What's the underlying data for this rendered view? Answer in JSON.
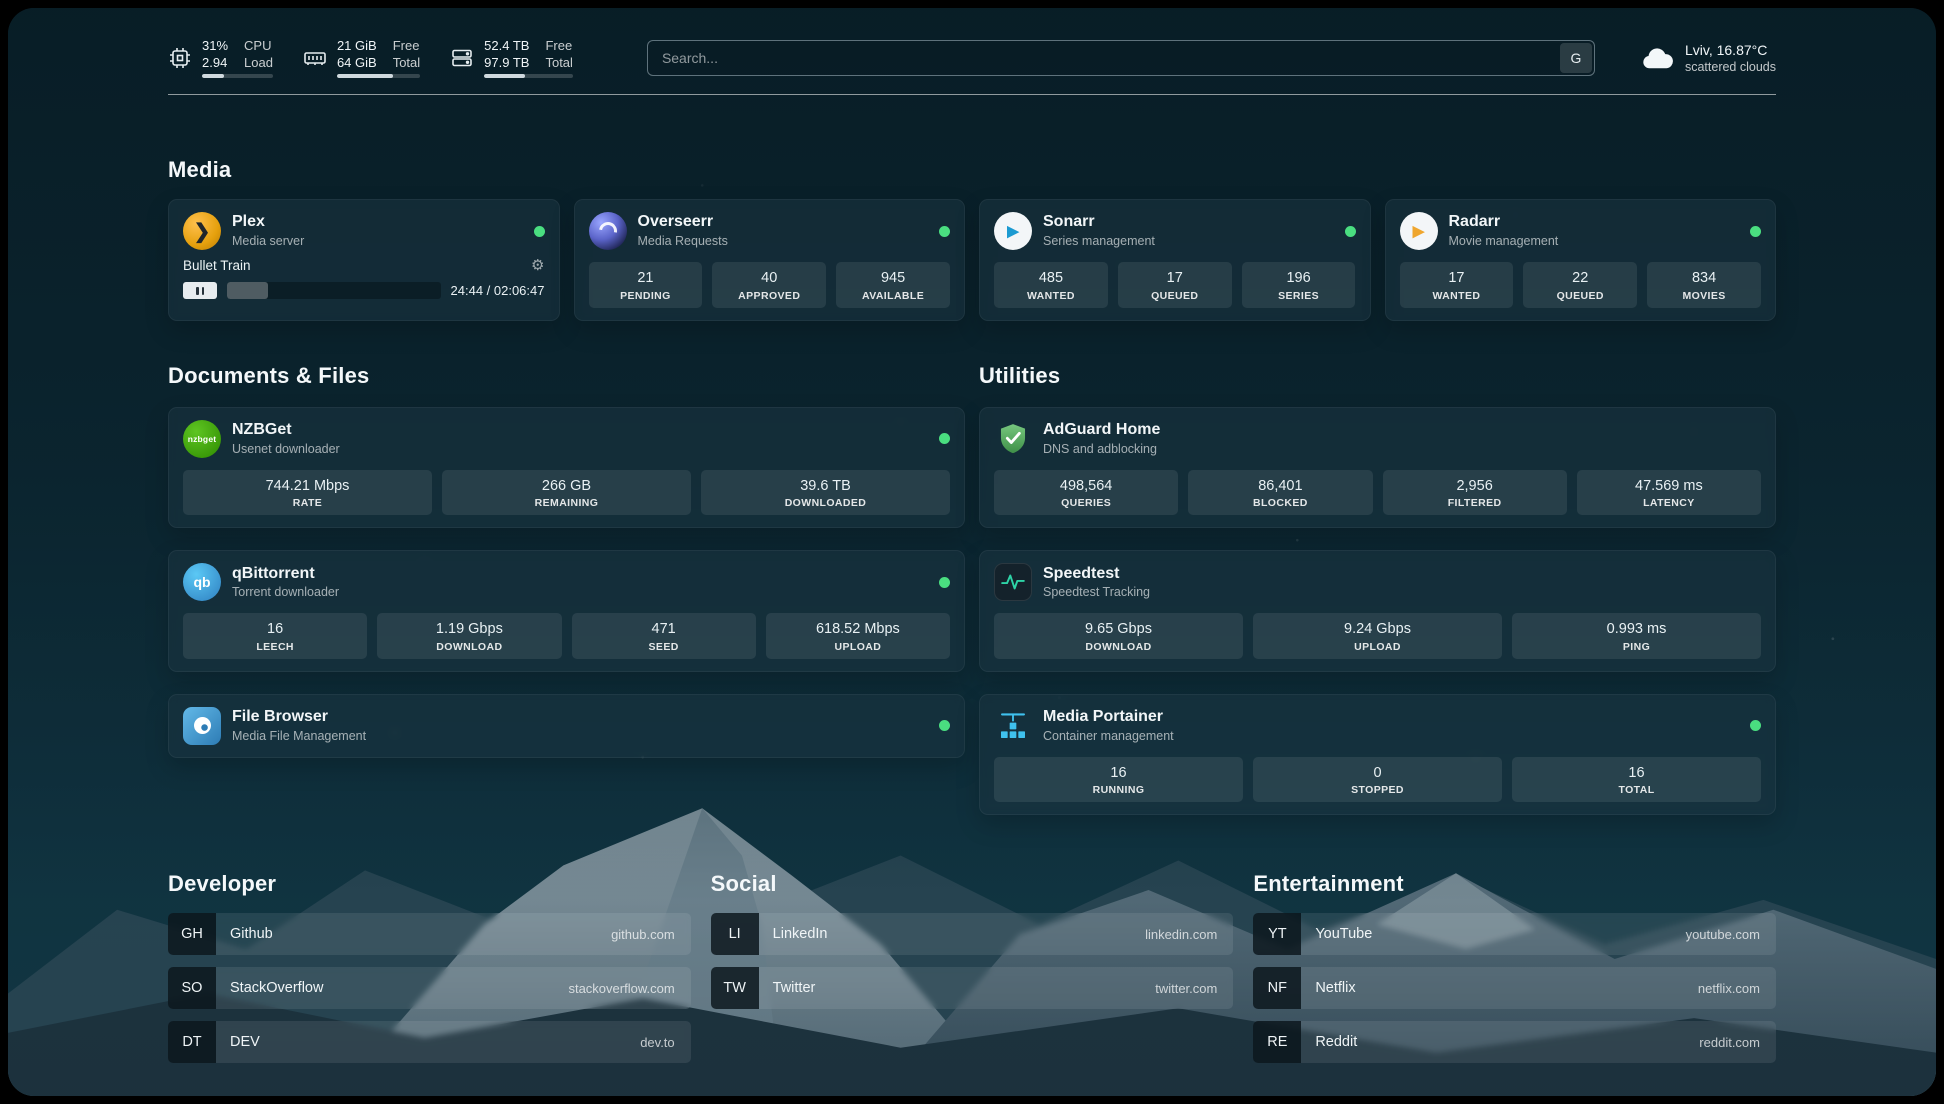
{
  "topbar": {
    "cpu": {
      "percent": 31,
      "value": "31%",
      "value2": "2.94",
      "label1": "CPU",
      "label2": "Load"
    },
    "ram": {
      "percent": 67,
      "value": "21 GiB",
      "value2": "64 GiB",
      "label1": "Free",
      "label2": "Total"
    },
    "disk": {
      "percent": 46,
      "value": "52.4 TB",
      "value2": "97.9 TB",
      "label1": "Free",
      "label2": "Total"
    },
    "search": {
      "placeholder": "Search...",
      "button": "G"
    },
    "weather": {
      "location": "Lviv, 16.87°C",
      "condition": "scattered clouds"
    }
  },
  "media": {
    "title": "Media",
    "services": [
      {
        "name": "Plex",
        "desc": "Media server",
        "icon_glyph": "❯",
        "now_playing": {
          "title": "Bullet Train",
          "time": "24:44 / 02:06:47",
          "progress_percent": 19
        }
      },
      {
        "name": "Overseerr",
        "desc": "Media Requests",
        "stats": [
          {
            "value": "21",
            "label": "PENDING"
          },
          {
            "value": "40",
            "label": "APPROVED"
          },
          {
            "value": "945",
            "label": "AVAILABLE"
          }
        ]
      },
      {
        "name": "Sonarr",
        "desc": "Series management",
        "icon_glyph": "▶",
        "stats": [
          {
            "value": "485",
            "label": "WANTED"
          },
          {
            "value": "17",
            "label": "QUEUED"
          },
          {
            "value": "196",
            "label": "SERIES"
          }
        ]
      },
      {
        "name": "Radarr",
        "desc": "Movie management",
        "icon_glyph": "▶",
        "stats": [
          {
            "value": "17",
            "label": "WANTED"
          },
          {
            "value": "22",
            "label": "QUEUED"
          },
          {
            "value": "834",
            "label": "MOVIES"
          }
        ]
      }
    ]
  },
  "documents": {
    "title": "Documents & Files",
    "services": [
      {
        "name": "NZBGet",
        "desc": "Usenet downloader",
        "icon_text": "nzbget",
        "stats": [
          {
            "value": "744.21 Mbps",
            "label": "RATE"
          },
          {
            "value": "266 GB",
            "label": "REMAINING"
          },
          {
            "value": "39.6 TB",
            "label": "DOWNLOADED"
          }
        ]
      },
      {
        "name": "qBittorrent",
        "desc": "Torrent downloader",
        "icon_text": "qb",
        "stats": [
          {
            "value": "16",
            "label": "LEECH"
          },
          {
            "value": "1.19 Gbps",
            "label": "DOWNLOAD"
          },
          {
            "value": "471",
            "label": "SEED"
          },
          {
            "value": "618.52 Mbps",
            "label": "UPLOAD"
          }
        ]
      },
      {
        "name": "File Browser",
        "desc": "Media File Management",
        "stats": []
      }
    ]
  },
  "utilities": {
    "title": "Utilities",
    "services": [
      {
        "name": "AdGuard Home",
        "desc": "DNS and adblocking",
        "stats": [
          {
            "value": "498,564",
            "label": "QUERIES"
          },
          {
            "value": "86,401",
            "label": "BLOCKED"
          },
          {
            "value": "2,956",
            "label": "FILTERED"
          },
          {
            "value": "47.569 ms",
            "label": "LATENCY"
          }
        ]
      },
      {
        "name": "Speedtest",
        "desc": "Speedtest Tracking",
        "stats": [
          {
            "value": "9.65 Gbps",
            "label": "DOWNLOAD"
          },
          {
            "value": "9.24 Gbps",
            "label": "UPLOAD"
          },
          {
            "value": "0.993 ms",
            "label": "PING"
          }
        ]
      },
      {
        "name": "Media Portainer",
        "desc": "Container management",
        "stats": [
          {
            "value": "16",
            "label": "RUNNING"
          },
          {
            "value": "0",
            "label": "STOPPED"
          },
          {
            "value": "16",
            "label": "TOTAL"
          }
        ]
      }
    ]
  },
  "bookmarks": [
    {
      "title": "Developer",
      "items": [
        {
          "abbr": "GH",
          "name": "Github",
          "url": "github.com"
        },
        {
          "abbr": "SO",
          "name": "StackOverflow",
          "url": "stackoverflow.com"
        },
        {
          "abbr": "DT",
          "name": "DEV",
          "url": "dev.to"
        }
      ]
    },
    {
      "title": "Social",
      "items": [
        {
          "abbr": "LI",
          "name": "LinkedIn",
          "url": "linkedin.com"
        },
        {
          "abbr": "TW",
          "name": "Twitter",
          "url": "twitter.com"
        }
      ]
    },
    {
      "title": "Entertainment",
      "items": [
        {
          "abbr": "YT",
          "name": "YouTube",
          "url": "youtube.com"
        },
        {
          "abbr": "NF",
          "name": "Netflix",
          "url": "netflix.com"
        },
        {
          "abbr": "RE",
          "name": "Reddit",
          "url": "reddit.com"
        }
      ]
    }
  ],
  "colors": {
    "status_online": "#4ade80",
    "accent_plex": "#e5a00d",
    "bg_teal": "#0e2b37"
  }
}
